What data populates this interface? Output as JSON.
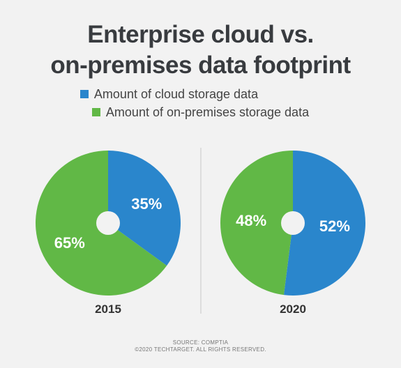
{
  "chart_data": [
    {
      "type": "pie",
      "title": "Enterprise cloud vs. on-premises data footprint",
      "label": "2015",
      "slices": [
        {
          "name": "Amount of cloud storage data",
          "value": 35,
          "label": "35%",
          "color": "#2a86cc"
        },
        {
          "name": "Amount of on-premises storage data",
          "value": 65,
          "label": "65%",
          "color": "#61b846"
        }
      ]
    },
    {
      "type": "pie",
      "title": "Enterprise cloud vs. on-premises data footprint",
      "label": "2020",
      "slices": [
        {
          "name": "Amount of cloud storage data",
          "value": 52,
          "label": "52%",
          "color": "#2a86cc"
        },
        {
          "name": "Amount of on-premises storage data",
          "value": 48,
          "label": "48%",
          "color": "#61b846"
        }
      ]
    }
  ],
  "title_line1": "Enterprise cloud vs.",
  "title_line2": "on-premises data footprint",
  "legend": [
    {
      "label": "Amount of cloud storage data",
      "color": "#2a86cc"
    },
    {
      "label": "Amount of on-premises storage data",
      "color": "#61b846"
    }
  ],
  "footer_source": "SOURCE: COMPTIA",
  "footer_copyright": "©2020 TECHTARGET. ALL RIGHTS RESERVED."
}
